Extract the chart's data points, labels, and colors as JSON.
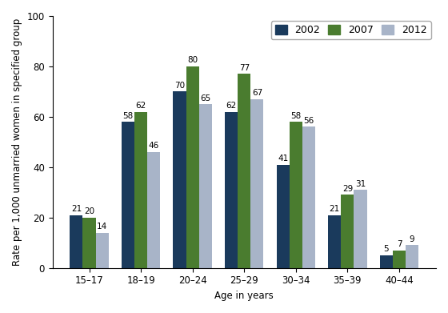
{
  "categories": [
    "15–17",
    "18–19",
    "20–24",
    "25–29",
    "30–34",
    "35–39",
    "40–44"
  ],
  "series": {
    "2002": [
      21,
      58,
      70,
      62,
      41,
      21,
      5
    ],
    "2007": [
      20,
      62,
      80,
      77,
      58,
      29,
      7
    ],
    "2012": [
      14,
      46,
      65,
      67,
      56,
      31,
      9
    ]
  },
  "colors": {
    "2002": "#1a3a5c",
    "2007": "#4a7c2f",
    "2012": "#a8b4c8"
  },
  "legend_labels": [
    "2002",
    "2007",
    "2012"
  ],
  "xlabel": "Age in years",
  "ylabel": "Rate per 1,000 unmarried women in specified group",
  "ylim": [
    0,
    100
  ],
  "yticks": [
    0,
    20,
    40,
    60,
    80,
    100
  ],
  "bar_width": 0.25,
  "title_fontsize": 10,
  "label_fontsize": 8.5,
  "tick_fontsize": 8.5,
  "annotation_fontsize": 7.5,
  "legend_fontsize": 9,
  "figure_width": 5.6,
  "figure_height": 3.91,
  "dpi": 100
}
